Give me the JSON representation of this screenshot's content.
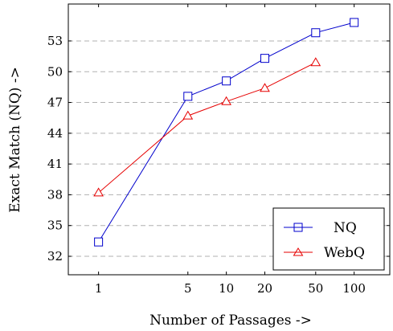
{
  "chart_data": {
    "type": "line",
    "title": "",
    "xlabel": "Number of Passages ->",
    "ylabel": "Exact Match (NQ) ->",
    "x_scale": "log",
    "x": [
      1,
      5,
      10,
      20,
      50,
      100
    ],
    "x_tick_labels": [
      "1",
      "5",
      "10",
      "20",
      "50",
      "100"
    ],
    "y_ticks": [
      32,
      35,
      38,
      41,
      44,
      47,
      50,
      53
    ],
    "ylim": [
      30.2,
      56.6
    ],
    "xlim": [
      0.58,
      190
    ],
    "grid": "horizontal dashed",
    "legend_position": "bottom-right",
    "series": [
      {
        "name": "NQ",
        "color": "#0000cc",
        "marker": "square",
        "x": [
          1,
          5,
          10,
          20,
          50,
          100
        ],
        "values": [
          33.4,
          47.6,
          49.1,
          51.3,
          53.8,
          54.8
        ]
      },
      {
        "name": "WebQ",
        "color": "#e60000",
        "marker": "triangle",
        "x": [
          1,
          5,
          10,
          20,
          50
        ],
        "values": [
          38.2,
          45.7,
          47.1,
          48.4,
          50.9
        ]
      }
    ]
  }
}
